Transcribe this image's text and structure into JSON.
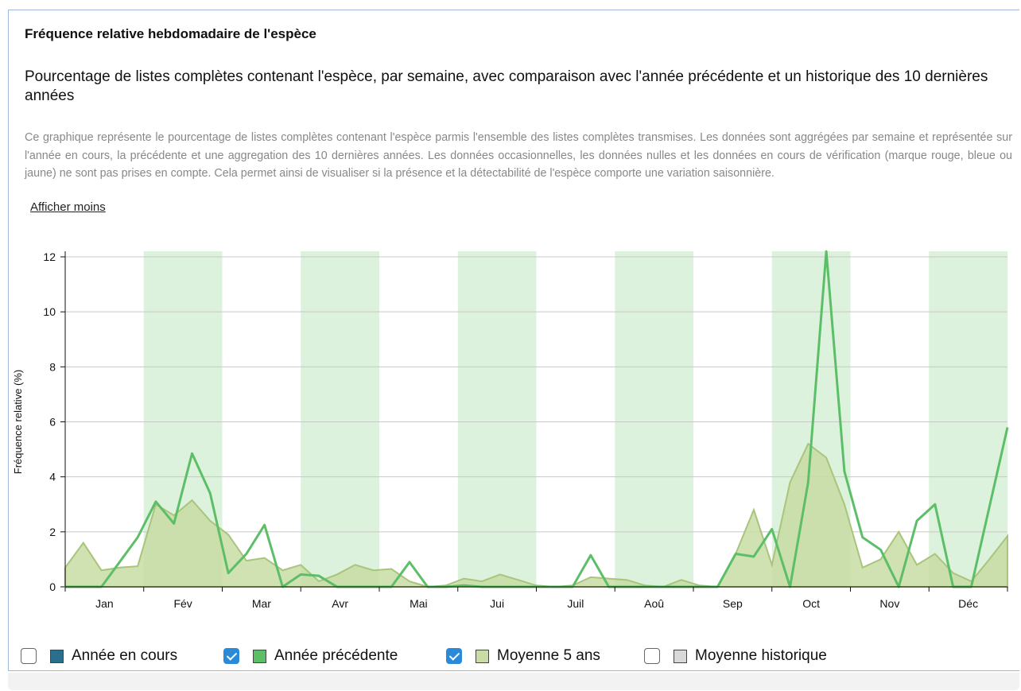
{
  "header": {
    "title": "Fréquence relative hebdomadaire de l'espèce",
    "subtitle": "Pourcentage de listes complètes contenant l'espèce, par semaine, avec comparaison avec l'année précédente et un historique des 10 dernières années",
    "description": "Ce graphique représente le pourcentage de listes complètes contenant l'espèce parmis l'ensemble des listes complètes transmises. Les données sont aggrégées par semaine et représentée sur l'année en cours, la précédente et une aggregation des 10 dernières années. Les données occasionnelles, les données nulles et les données en cours de vérification (marque rouge, bleue ou jaune) ne sont pas prises en compte. Cela permet ainsi de visualiser si la présence et la détectabilité de l'espèce comporte une variation saisonnière.",
    "toggle": "Afficher moins"
  },
  "chart_data": {
    "type": "line",
    "ylabel": "Fréquence relative (%)",
    "months": [
      "Jan",
      "Fév",
      "Mar",
      "Avr",
      "Mai",
      "Jui",
      "Juil",
      "Aoû",
      "Sep",
      "Oct",
      "Nov",
      "Déc"
    ],
    "band_color": "#dcf2dc",
    "x": [
      0,
      1,
      2,
      3,
      4,
      5,
      6,
      7,
      8,
      9,
      10,
      11,
      12,
      13,
      14,
      15,
      16,
      17,
      18,
      19,
      20,
      21,
      22,
      23,
      24,
      25,
      26,
      27,
      28,
      29,
      30,
      31,
      32,
      33,
      34,
      35,
      36,
      37,
      38,
      39,
      40,
      41,
      42,
      43,
      44,
      45,
      46,
      47,
      48,
      49,
      50,
      51,
      52
    ],
    "xlim": [
      0,
      52
    ],
    "ylim": [
      0,
      12
    ],
    "yticks": [
      0,
      2,
      4,
      6,
      8,
      10,
      12
    ],
    "grid": true,
    "series": [
      {
        "name": "Année en cours",
        "color": "#2b6f8c",
        "checked": false
      },
      {
        "name": "Année précédente",
        "color": "#5cbf68",
        "checked": true,
        "kind": "line",
        "values": [
          0,
          0,
          0,
          0.9,
          1.8,
          3.1,
          2.3,
          4.85,
          3.4,
          0.5,
          1.2,
          2.25,
          0,
          0.45,
          0.4,
          0,
          0,
          0,
          0,
          0.9,
          0,
          0,
          0.05,
          0,
          0,
          0,
          0,
          0,
          0,
          1.15,
          0,
          0,
          0,
          0,
          0,
          0,
          0,
          1.2,
          1.1,
          2.1,
          0,
          3.8,
          12.2,
          4.2,
          1.8,
          1.35,
          0,
          2.4,
          3.0,
          0,
          0,
          2.9,
          5.8
        ]
      },
      {
        "name": "Moyenne 5 ans",
        "color": "#c8dca4",
        "checked": true,
        "kind": "area",
        "values": [
          0.7,
          1.6,
          0.6,
          0.7,
          0.75,
          3.0,
          2.6,
          3.15,
          2.4,
          1.9,
          0.95,
          1.05,
          0.6,
          0.8,
          0.2,
          0.45,
          0.8,
          0.6,
          0.65,
          0.2,
          0,
          0.05,
          0.3,
          0.2,
          0.45,
          0.25,
          0.05,
          0,
          0.05,
          0.35,
          0.3,
          0.25,
          0.05,
          0,
          0.25,
          0.05,
          0,
          1.2,
          2.8,
          0.8,
          3.8,
          5.2,
          4.7,
          3.0,
          0.7,
          1.0,
          2.0,
          0.8,
          1.2,
          0.5,
          0.2,
          1.0,
          1.85
        ]
      },
      {
        "name": "Moyenne historique",
        "color": "#d9d9d9",
        "checked": false
      }
    ]
  }
}
